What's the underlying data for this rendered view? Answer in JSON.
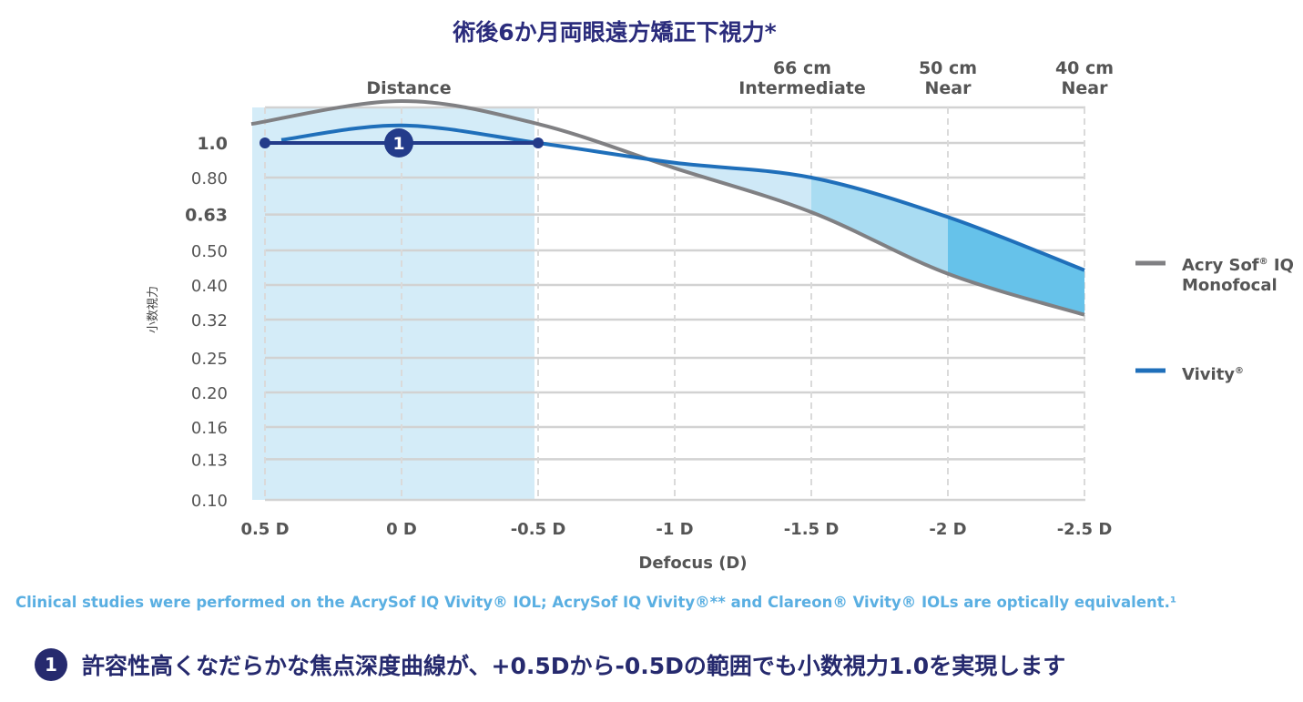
{
  "title": "術後6か月両眼遠方矯正下視力*",
  "chart_data": {
    "type": "line",
    "xlabel": "Defocus (D)",
    "ylabel": "小数視力",
    "y_scale": "log",
    "x_ticks": [
      0.5,
      0,
      -0.5,
      -1,
      -1.5,
      -2,
      -2.5
    ],
    "x_tick_labels": [
      "0.5 D",
      "0 D",
      "-0.5 D",
      "-1 D",
      "-1.5 D",
      "-2 D",
      "-2.5 D"
    ],
    "y_ticks": [
      1.0,
      0.8,
      0.63,
      0.5,
      0.4,
      0.32,
      0.25,
      0.2,
      0.16,
      0.13,
      0.1
    ],
    "y_tick_labels": [
      "1.0",
      "0.80",
      "0.63",
      "0.50",
      "0.40",
      "0.32",
      "0.25",
      "0.20",
      "0.16",
      "0.13",
      "0.10"
    ],
    "y_bold_ticks": [
      "1.0",
      "0.63"
    ],
    "grid": true,
    "legend_position": "right",
    "region_labels": [
      {
        "x": 0,
        "lines": [
          "Distance"
        ]
      },
      {
        "x": -1.5,
        "lines": [
          "66 cm",
          "Intermediate"
        ]
      },
      {
        "x": -2,
        "lines": [
          "50 cm",
          "Near"
        ]
      },
      {
        "x": -2.5,
        "lines": [
          "40 cm",
          "Near"
        ]
      }
    ],
    "series": [
      {
        "name": "Acry Sof® IQ Monofocal",
        "color": "#808083",
        "x": [
          0.55,
          0,
          -0.5,
          -1,
          -1.5,
          -2,
          -2.5
        ],
        "y": [
          1.13,
          1.31,
          1.13,
          0.85,
          0.64,
          0.43,
          0.33
        ]
      },
      {
        "name": "Vivity®",
        "color": "#1f6fba",
        "x": [
          0.44,
          0,
          -0.5,
          -1,
          -1.5,
          -2,
          -2.5
        ],
        "y": [
          1.02,
          1.12,
          1.0,
          0.88,
          0.8,
          0.62,
          0.44
        ]
      }
    ],
    "annotation": {
      "label": "1",
      "x_range": [
        0.5,
        -0.5
      ],
      "y": 1.0,
      "color": "#233b8a"
    },
    "distance_band": {
      "x_range": [
        0.5,
        -0.5
      ],
      "color": "#d4ecf8"
    }
  },
  "legend": {
    "mono_line1": "Acry Sof",
    "mono_reg": "®",
    "mono_line1b": " IQ",
    "mono_line2": "Monofocal",
    "vivity": "Vivity",
    "vivity_reg": "®"
  },
  "footnote": "Clinical studies were performed on the AcrySof IQ Vivity® IOL;  AcrySof IQ Vivity®** and Clareon® Vivity®  IOLs are optically equivalent.¹",
  "note": {
    "badge": "1",
    "text": "許容性高くなだらかな焦点深度曲線が、+0.5Dから-0.5Dの範囲でも小数視力1.0を実現します"
  }
}
